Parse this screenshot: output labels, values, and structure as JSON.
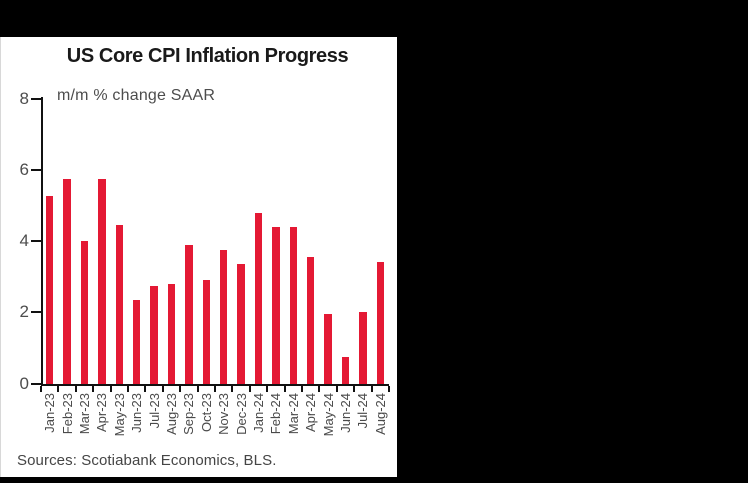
{
  "page": {
    "background_color": "#000000",
    "panel_color": "#ffffff"
  },
  "chart_data": {
    "type": "bar",
    "title": "US Core CPI Inflation Progress",
    "ylabel": "m/m % change SAAR",
    "xlabel": "",
    "source": "Sources: Scotiabank Economics, BLS.",
    "categories": [
      "Jan-23",
      "Feb-23",
      "Mar-23",
      "Apr-23",
      "May-23",
      "Jun-23",
      "Jul-23",
      "Aug-23",
      "Sep-23",
      "Oct-23",
      "Nov-23",
      "Dec-23",
      "Jan-24",
      "Feb-24",
      "Mar-24",
      "Apr-24",
      "May-24",
      "Jun-24",
      "Jul-24",
      "Aug-24"
    ],
    "values": [
      5.25,
      5.75,
      4.0,
      5.75,
      4.45,
      2.35,
      2.75,
      2.8,
      3.9,
      2.9,
      3.75,
      3.35,
      4.8,
      4.4,
      4.4,
      3.55,
      1.95,
      0.75,
      2.0,
      3.4
    ],
    "ylim": [
      0,
      8
    ],
    "yticks": [
      8,
      6,
      4,
      2,
      0
    ],
    "grid": false,
    "legend": null,
    "bar_color": "#e41934",
    "axis_color": "#111111",
    "label_color": "#4a4a4a"
  }
}
